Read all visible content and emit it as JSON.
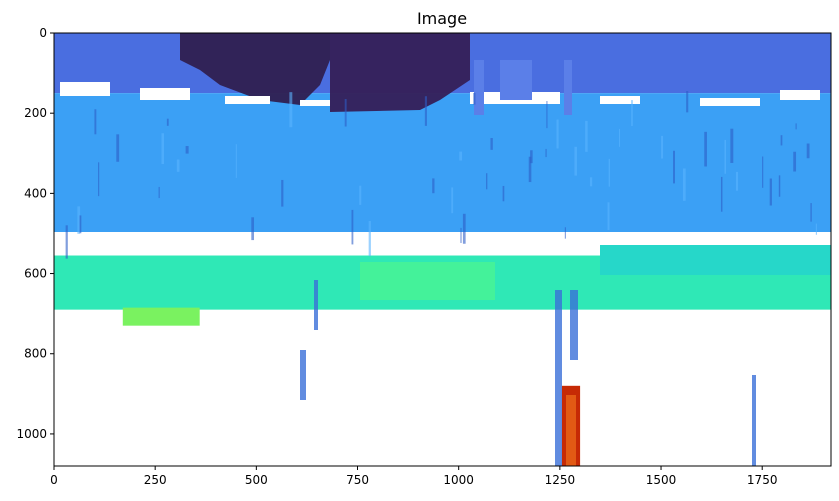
{
  "chart_data": {
    "type": "heatmap",
    "title": "Image",
    "xlabel": "",
    "ylabel": "",
    "xlim": [
      0,
      1920
    ],
    "ylim": [
      1080,
      0
    ],
    "x_ticks": [
      0,
      250,
      500,
      750,
      1000,
      1250,
      1500,
      1750
    ],
    "y_ticks": [
      0,
      200,
      400,
      600,
      800,
      1000
    ],
    "grid": false,
    "colormap": "turbo",
    "background_color": "#ffffff",
    "regions": [
      {
        "name": "dark-top-band",
        "color": "#3b2f63",
        "x": [
          0,
          1920
        ],
        "y": [
          0,
          140
        ]
      },
      {
        "name": "blue-top-band",
        "color": "#4a6ee0",
        "x": [
          0,
          1920
        ],
        "y": [
          0,
          150
        ]
      },
      {
        "name": "light-blue-band",
        "color": "#3ba0f5",
        "x": [
          0,
          1920
        ],
        "y": [
          150,
          500
        ]
      },
      {
        "name": "cyan-green-band",
        "color": "#2fe8b6",
        "x": [
          0,
          1920
        ],
        "y": [
          555,
          690
        ]
      },
      {
        "name": "green-blob",
        "color": "#7af260",
        "x": [
          170,
          360
        ],
        "y": [
          685,
          730
        ]
      },
      {
        "name": "red-streak",
        "color": "#c62a05",
        "x": [
          1255,
          1300
        ],
        "y": [
          880,
          1080
        ]
      }
    ]
  }
}
